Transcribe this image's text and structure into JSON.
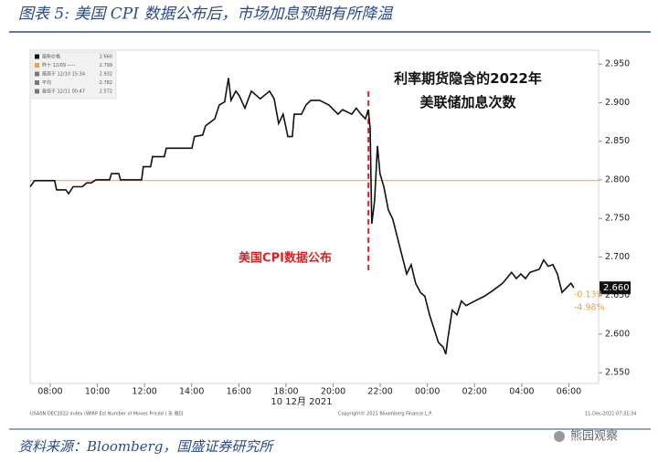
{
  "title": "图表 5:  美国 CPI 数据公布后，市场加息预期有所降温",
  "source": "资料来源：Bloomberg，国盛证券研究所",
  "watermark": "熊园观察",
  "chart_data": {
    "type": "line",
    "annotation": "利率期货隐含的2022年美联储加息次数",
    "event": {
      "label": "美国CPI数据公布",
      "x": 21.5
    },
    "date_label": "10 12月 2021",
    "footer_left": "USA0N DEC2022 Index (WIRP Est Number of Moves Priced ) 天 每日",
    "footer_mid": "Copyright© 2021 Bloomberg Finance L.P.",
    "footer_right": "11-Dec-2021 07:31:34",
    "legend_items": [
      {
        "label": "最新价格",
        "value": "2.660"
      },
      {
        "label": "昨十 12/09 -----",
        "value": "2.799"
      },
      {
        "label": "最高于 12/10 15:34",
        "value": "2.932"
      },
      {
        "label": "平均",
        "value": "2.782"
      },
      {
        "label": "最低于 12/11 00:47",
        "value": "2.572"
      }
    ],
    "reference_line": {
      "value": 2.799,
      "color": "#f0a040"
    },
    "last_value": {
      "value": 2.66,
      "label": "2.660"
    },
    "change": -0.139,
    "change_pct": {
      "value": -4.98,
      "label": "-4.98%"
    },
    "x": [
      7.15,
      7.34,
      8.19,
      8.27,
      8.66,
      8.78,
      8.97,
      9.36,
      9.55,
      9.74,
      9.94,
      10.52,
      10.6,
      10.91,
      10.98,
      11.88,
      11.95,
      12.26,
      12.34,
      12.84,
      12.92,
      14.01,
      14.12,
      14.47,
      14.59,
      14.98,
      15.17,
      15.4,
      15.56,
      15.67,
      15.87,
      16.02,
      16.26,
      16.53,
      16.91,
      17.3,
      17.5,
      17.69,
      17.88,
      18.08,
      18.27,
      18.35,
      18.66,
      18.85,
      19.05,
      19.43,
      19.82,
      20.21,
      20.4,
      20.79,
      20.98,
      21.18,
      21.37,
      21.49,
      21.57,
      21.64,
      21.76,
      21.88,
      21.99,
      22.15,
      22.34,
      22.53,
      22.73,
      22.92,
      23.12,
      23.31,
      23.5,
      23.7,
      23.89,
      24.09,
      24.28,
      24.47,
      24.67,
      24.78,
      24.86,
      25.05,
      25.25,
      25.44,
      25.64,
      26.02,
      26.41,
      26.8,
      27.19,
      27.57,
      27.77,
      27.96,
      28.16,
      28.35,
      28.74,
      28.93,
      29.12,
      29.32,
      29.51,
      29.71,
      29.9,
      30.09,
      30.21
    ],
    "series": [
      {
        "name": "最新价格",
        "color": "#111111",
        "values": [
          2.791,
          2.799,
          2.799,
          2.787,
          2.787,
          2.782,
          2.791,
          2.791,
          2.796,
          2.796,
          2.8,
          2.8,
          2.808,
          2.808,
          2.8,
          2.8,
          2.817,
          2.817,
          2.83,
          2.83,
          2.841,
          2.841,
          2.856,
          2.858,
          2.87,
          2.879,
          2.897,
          2.901,
          2.932,
          2.903,
          2.915,
          2.909,
          2.893,
          2.915,
          2.905,
          2.915,
          2.905,
          2.873,
          2.885,
          2.856,
          2.856,
          2.885,
          2.885,
          2.897,
          2.903,
          2.903,
          2.897,
          2.885,
          2.891,
          2.885,
          2.893,
          2.885,
          2.879,
          2.891,
          2.867,
          2.743,
          2.773,
          2.844,
          2.808,
          2.791,
          2.761,
          2.749,
          2.725,
          2.702,
          2.678,
          2.69,
          2.666,
          2.654,
          2.649,
          2.625,
          2.607,
          2.589,
          2.583,
          2.574,
          2.593,
          2.631,
          2.625,
          2.643,
          2.637,
          2.643,
          2.649,
          2.657,
          2.666,
          2.68,
          2.672,
          2.678,
          2.672,
          2.68,
          2.684,
          2.696,
          2.688,
          2.69,
          2.678,
          2.654,
          2.66,
          2.666,
          2.66
        ]
      }
    ],
    "xlim": [
      7.15,
      31.26
    ],
    "ylim": [
      2.536,
      2.968
    ],
    "xticks": [
      {
        "value": 8,
        "label": "08:00"
      },
      {
        "value": 10,
        "label": "10:00"
      },
      {
        "value": 12,
        "label": "12:00"
      },
      {
        "value": 14,
        "label": "14:00"
      },
      {
        "value": 16,
        "label": "16:00"
      },
      {
        "value": 18,
        "label": "18:00"
      },
      {
        "value": 20,
        "label": "20:00"
      },
      {
        "value": 22,
        "label": "22:00"
      },
      {
        "value": 24,
        "label": "00:00"
      },
      {
        "value": 26,
        "label": "02:00"
      },
      {
        "value": 28,
        "label": "04:00"
      },
      {
        "value": 30,
        "label": "06:00"
      }
    ],
    "yticks": [
      {
        "value": 2.55,
        "label": "2.550"
      },
      {
        "value": 2.6,
        "label": "2.600"
      },
      {
        "value": 2.65,
        "label": "2.650"
      },
      {
        "value": 2.7,
        "label": "2.700"
      },
      {
        "value": 2.75,
        "label": "2.750"
      },
      {
        "value": 2.8,
        "label": "2.800"
      },
      {
        "value": 2.85,
        "label": "2.850"
      },
      {
        "value": 2.9,
        "label": "2.900"
      },
      {
        "value": 2.95,
        "label": "2.950"
      }
    ]
  }
}
